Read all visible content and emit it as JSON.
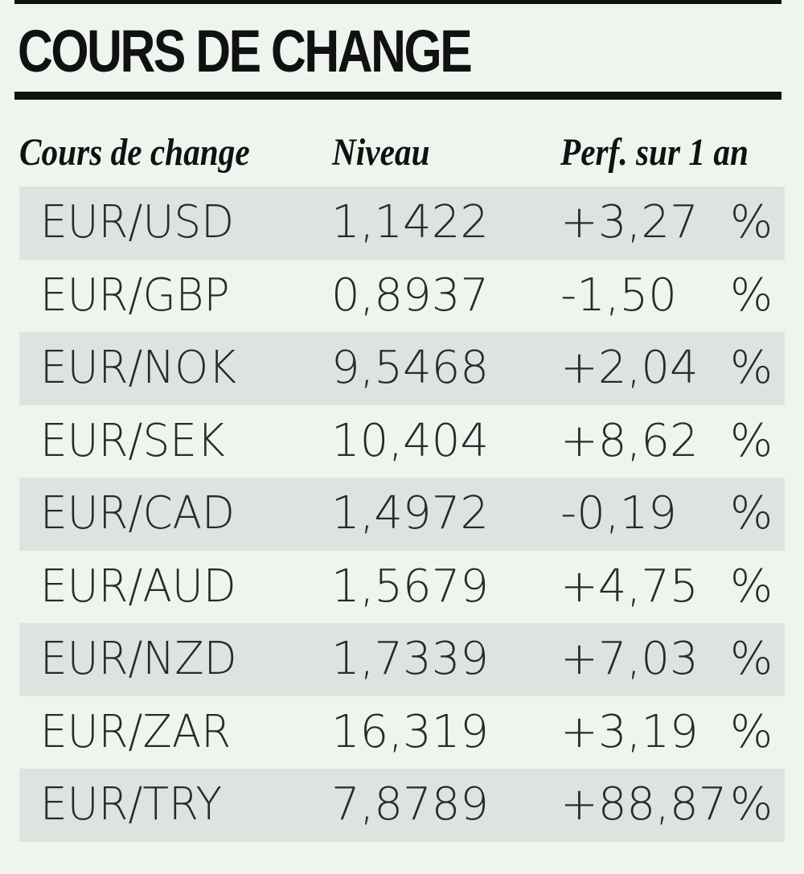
{
  "title": "COURS DE CHANGE",
  "headers": {
    "pair": "Cours de change",
    "level": "Niveau",
    "perf": "Perf. sur 1 an"
  },
  "rows": [
    {
      "pair": "EUR/USD",
      "level": "1,1422",
      "perf": "+3,27",
      "unit": "%"
    },
    {
      "pair": "EUR/GBP",
      "level": "0,8937",
      "perf": "-1,50",
      "unit": "%"
    },
    {
      "pair": "EUR/NOK",
      "level": "9,5468",
      "perf": "+2,04",
      "unit": "%"
    },
    {
      "pair": "EUR/SEK",
      "level": "10,404",
      "perf": "+8,62",
      "unit": "%"
    },
    {
      "pair": "EUR/CAD",
      "level": "1,4972",
      "perf": "-0,19",
      "unit": "%"
    },
    {
      "pair": "EUR/AUD",
      "level": "1,5679",
      "perf": "+4,75",
      "unit": "%"
    },
    {
      "pair": "EUR/NZD",
      "level": "1,7339",
      "perf": "+7,03",
      "unit": "%"
    },
    {
      "pair": "EUR/ZAR",
      "level": "16,319",
      "perf": "+3,19",
      "unit": "%"
    },
    {
      "pair": "EUR/TRY",
      "level": "7,8789",
      "perf": "+88,87",
      "unit": "%"
    }
  ],
  "colors": {
    "background": "#eef5ef",
    "row_shade": "#dfe3df",
    "rule": "#111111"
  }
}
